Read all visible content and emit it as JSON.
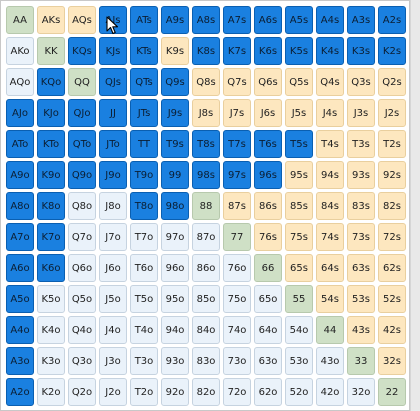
{
  "grid": {
    "rows": [
      [
        "AA",
        "AKs",
        "AQs",
        "AJs",
        "ATs",
        "A9s",
        "A8s",
        "A7s",
        "A6s",
        "A5s",
        "A4s",
        "A3s",
        "A2s"
      ],
      [
        "AKo",
        "KK",
        "KQs",
        "KJs",
        "KTs",
        "K9s",
        "K8s",
        "K7s",
        "K6s",
        "K5s",
        "K4s",
        "K3s",
        "K2s"
      ],
      [
        "AQo",
        "KQo",
        "QQ",
        "QJs",
        "QTs",
        "Q9s",
        "Q8s",
        "Q7s",
        "Q6s",
        "Q5s",
        "Q4s",
        "Q3s",
        "Q2s"
      ],
      [
        "AJo",
        "KJo",
        "QJo",
        "JJ",
        "JTs",
        "J9s",
        "J8s",
        "J7s",
        "J6s",
        "J5s",
        "J4s",
        "J3s",
        "J2s"
      ],
      [
        "ATo",
        "KTo",
        "QTo",
        "JTo",
        "TT",
        "T9s",
        "T8s",
        "T7s",
        "T6s",
        "T5s",
        "T4s",
        "T3s",
        "T2s"
      ],
      [
        "A9o",
        "K9o",
        "Q9o",
        "J9o",
        "T9o",
        "99",
        "98s",
        "97s",
        "96s",
        "95s",
        "94s",
        "93s",
        "92s"
      ],
      [
        "A8o",
        "K8o",
        "Q8o",
        "J8o",
        "T8o",
        "98o",
        "88",
        "87s",
        "86s",
        "85s",
        "84s",
        "83s",
        "82s"
      ],
      [
        "A7o",
        "K7o",
        "Q7o",
        "J7o",
        "T7o",
        "97o",
        "87o",
        "77",
        "76s",
        "75s",
        "74s",
        "73s",
        "72s"
      ],
      [
        "A6o",
        "K6o",
        "Q6o",
        "J6o",
        "T6o",
        "96o",
        "86o",
        "76o",
        "66",
        "65s",
        "64s",
        "63s",
        "62s"
      ],
      [
        "A5o",
        "K5o",
        "Q5o",
        "J5o",
        "T5o",
        "95o",
        "85o",
        "75o",
        "65o",
        "55",
        "54s",
        "53s",
        "52s"
      ],
      [
        "A4o",
        "K4o",
        "Q4o",
        "J4o",
        "T4o",
        "94o",
        "84o",
        "74o",
        "64o",
        "54o",
        "44",
        "43s",
        "42s"
      ],
      [
        "A3o",
        "K3o",
        "Q3o",
        "J3o",
        "T3o",
        "93o",
        "83o",
        "73o",
        "63o",
        "53o",
        "43o",
        "33",
        "32s"
      ],
      [
        "A2o",
        "K2o",
        "Q2o",
        "J2o",
        "T2o",
        "92o",
        "82o",
        "72o",
        "62o",
        "52o",
        "42o",
        "32o",
        "22"
      ]
    ],
    "selected": [
      "AJs",
      "ATs",
      "A9s",
      "A8s",
      "A7s",
      "A6s",
      "A5s",
      "A4s",
      "A3s",
      "A2s",
      "KQs",
      "KJs",
      "KTs",
      "K8s",
      "K7s",
      "K6s",
      "K5s",
      "K4s",
      "K3s",
      "K2s",
      "KQo",
      "QJs",
      "QTs",
      "Q9s",
      "AJo",
      "KJo",
      "QJo",
      "JJ",
      "JTs",
      "J9s",
      "ATo",
      "KTo",
      "QTo",
      "JTo",
      "TT",
      "T9s",
      "T8s",
      "T7s",
      "T6s",
      "T5s",
      "A9o",
      "K9o",
      "Q9o",
      "J9o",
      "T9o",
      "99",
      "98s",
      "97s",
      "96s",
      "A8o",
      "K8o",
      "T8o",
      "98o",
      "A7o",
      "K7o",
      "A6o",
      "K6o",
      "A5o",
      "A4o",
      "A3o",
      "A2o"
    ]
  },
  "colors": {
    "selected": "#1a80e0",
    "pair": "#cfe0c6",
    "suited": "#fde7bf",
    "offsuit": "#eaf2fa"
  }
}
